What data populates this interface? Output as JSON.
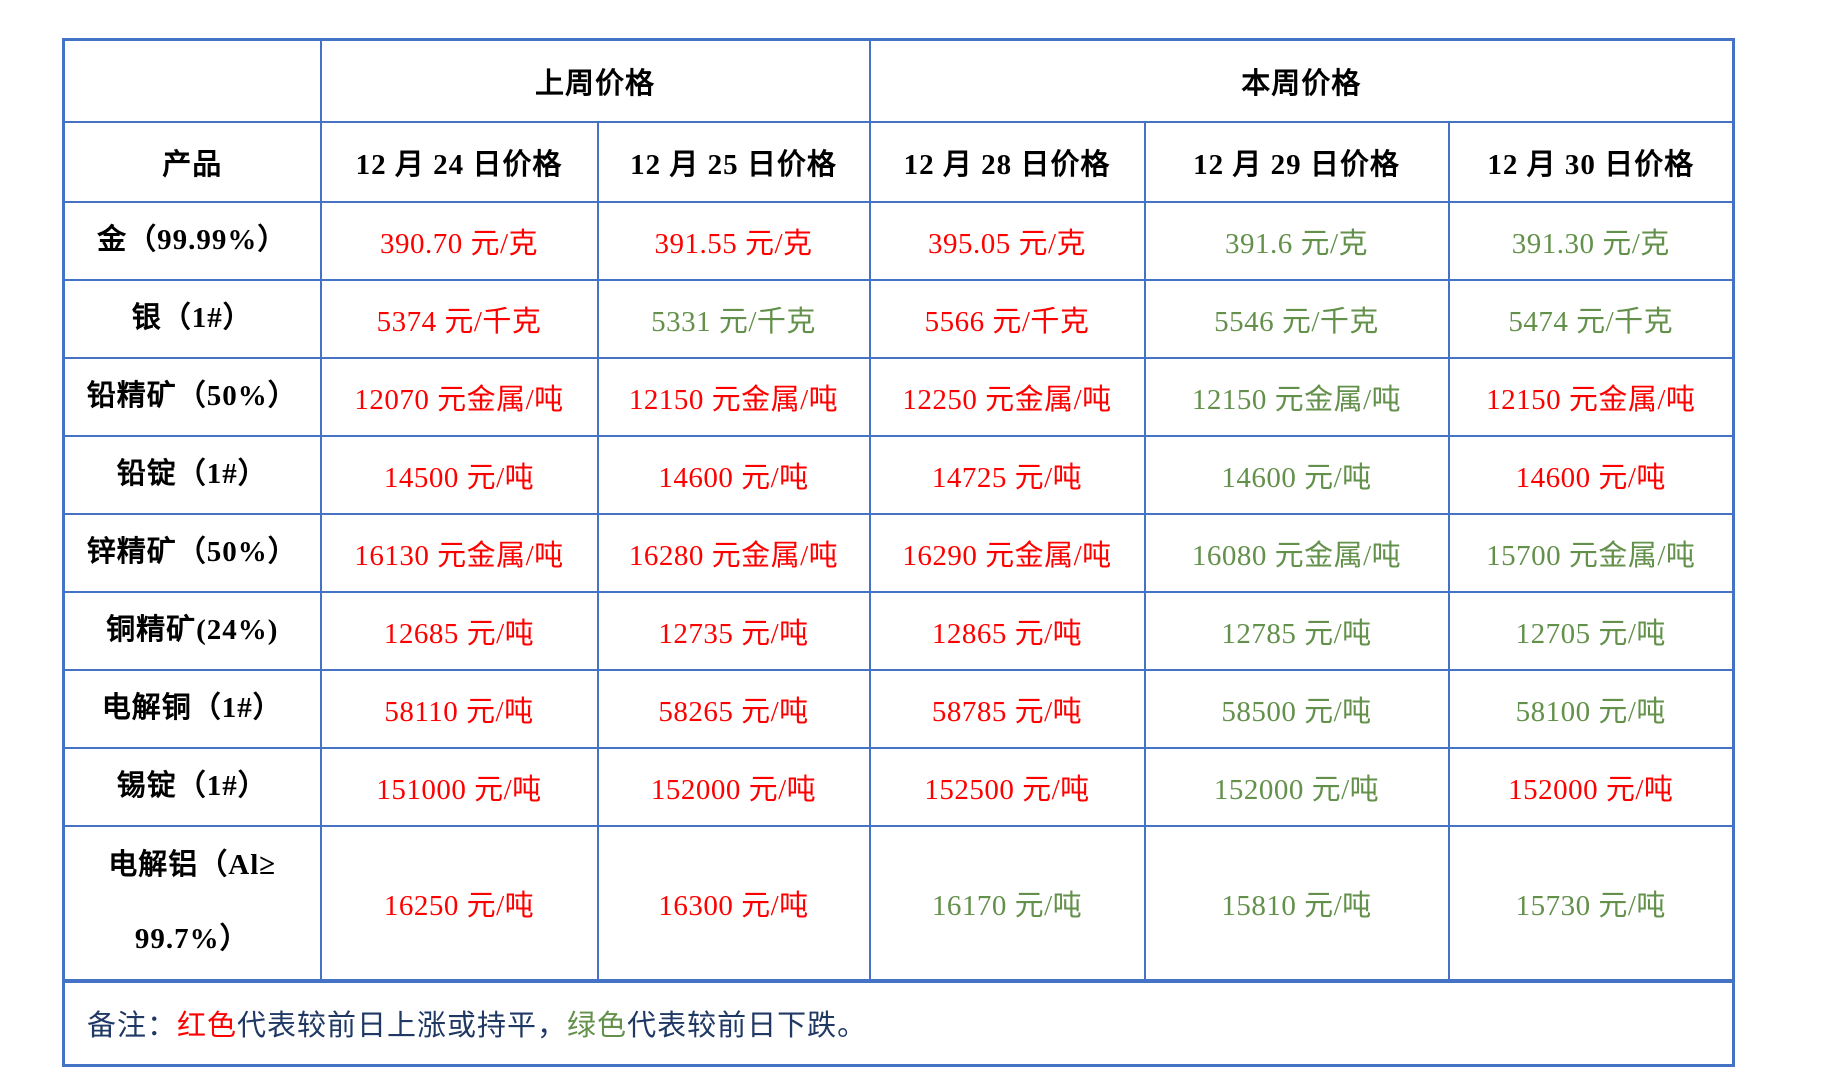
{
  "colors": {
    "border": "#4472C4",
    "up": "#FF0000",
    "down": "#63904A",
    "note": "#1F3864"
  },
  "table": {
    "group_headers": [
      {
        "label": "",
        "colspan": 1
      },
      {
        "label": "上周价格",
        "colspan": 2
      },
      {
        "label": "本周价格",
        "colspan": 3
      }
    ],
    "column_headers": [
      "产品",
      "12 月 24 日价格",
      "12 月 25 日价格",
      "12 月 28 日价格",
      "12 月 29 日价格",
      "12 月 30 日价格"
    ],
    "rows": [
      {
        "product": "金（99.99%）",
        "values": [
          {
            "text": "390.70 元/克",
            "trend": "up"
          },
          {
            "text": "391.55 元/克",
            "trend": "up"
          },
          {
            "text": "395.05 元/克",
            "trend": "up"
          },
          {
            "text": "391.6 元/克",
            "trend": "down"
          },
          {
            "text": "391.30 元/克",
            "trend": "down"
          }
        ]
      },
      {
        "product": "银（1#）",
        "values": [
          {
            "text": "5374 元/千克",
            "trend": "up"
          },
          {
            "text": "5331 元/千克",
            "trend": "down"
          },
          {
            "text": "5566 元/千克",
            "trend": "up"
          },
          {
            "text": "5546 元/千克",
            "trend": "down"
          },
          {
            "text": "5474 元/千克",
            "trend": "down"
          }
        ]
      },
      {
        "product": "铅精矿（50%）",
        "values": [
          {
            "text": "12070 元金属/吨",
            "trend": "up"
          },
          {
            "text": "12150 元金属/吨",
            "trend": "up"
          },
          {
            "text": "12250 元金属/吨",
            "trend": "up"
          },
          {
            "text": "12150 元金属/吨",
            "trend": "down"
          },
          {
            "text": "12150 元金属/吨",
            "trend": "up"
          }
        ]
      },
      {
        "product": "铅锭（1#）",
        "values": [
          {
            "text": "14500 元/吨",
            "trend": "up"
          },
          {
            "text": "14600 元/吨",
            "trend": "up"
          },
          {
            "text": "14725 元/吨",
            "trend": "up"
          },
          {
            "text": "14600 元/吨",
            "trend": "down"
          },
          {
            "text": "14600 元/吨",
            "trend": "up"
          }
        ]
      },
      {
        "product": "锌精矿（50%）",
        "values": [
          {
            "text": "16130 元金属/吨",
            "trend": "up"
          },
          {
            "text": "16280 元金属/吨",
            "trend": "up"
          },
          {
            "text": "16290 元金属/吨",
            "trend": "up"
          },
          {
            "text": "16080 元金属/吨",
            "trend": "down"
          },
          {
            "text": "15700 元金属/吨",
            "trend": "down"
          }
        ]
      },
      {
        "product": "铜精矿(24%)",
        "values": [
          {
            "text": "12685 元/吨",
            "trend": "up"
          },
          {
            "text": "12735 元/吨",
            "trend": "up"
          },
          {
            "text": "12865 元/吨",
            "trend": "up"
          },
          {
            "text": "12785 元/吨",
            "trend": "down"
          },
          {
            "text": "12705 元/吨",
            "trend": "down"
          }
        ]
      },
      {
        "product": "电解铜（1#）",
        "values": [
          {
            "text": "58110 元/吨",
            "trend": "up"
          },
          {
            "text": "58265 元/吨",
            "trend": "up"
          },
          {
            "text": "58785 元/吨",
            "trend": "up"
          },
          {
            "text": "58500 元/吨",
            "trend": "down"
          },
          {
            "text": "58100 元/吨",
            "trend": "down"
          }
        ]
      },
      {
        "product": "锡锭（1#）",
        "values": [
          {
            "text": "151000 元/吨",
            "trend": "up"
          },
          {
            "text": "152000 元/吨",
            "trend": "up"
          },
          {
            "text": "152500 元/吨",
            "trend": "up"
          },
          {
            "text": "152000 元/吨",
            "trend": "down"
          },
          {
            "text": "152000 元/吨",
            "trend": "up"
          }
        ]
      },
      {
        "product": "电解铝（Al≥\n99.7%）",
        "values": [
          {
            "text": "16250 元/吨",
            "trend": "up"
          },
          {
            "text": "16300 元/吨",
            "trend": "up"
          },
          {
            "text": "16170 元/吨",
            "trend": "down"
          },
          {
            "text": "15810 元/吨",
            "trend": "down"
          },
          {
            "text": "15730 元/吨",
            "trend": "down"
          }
        ]
      }
    ],
    "note": {
      "prefix": "备注：",
      "red_label": "红色",
      "red_desc": "代表较前日上涨或持平，",
      "green_label": "绿色",
      "green_desc": "代表较前日下跌。"
    }
  }
}
